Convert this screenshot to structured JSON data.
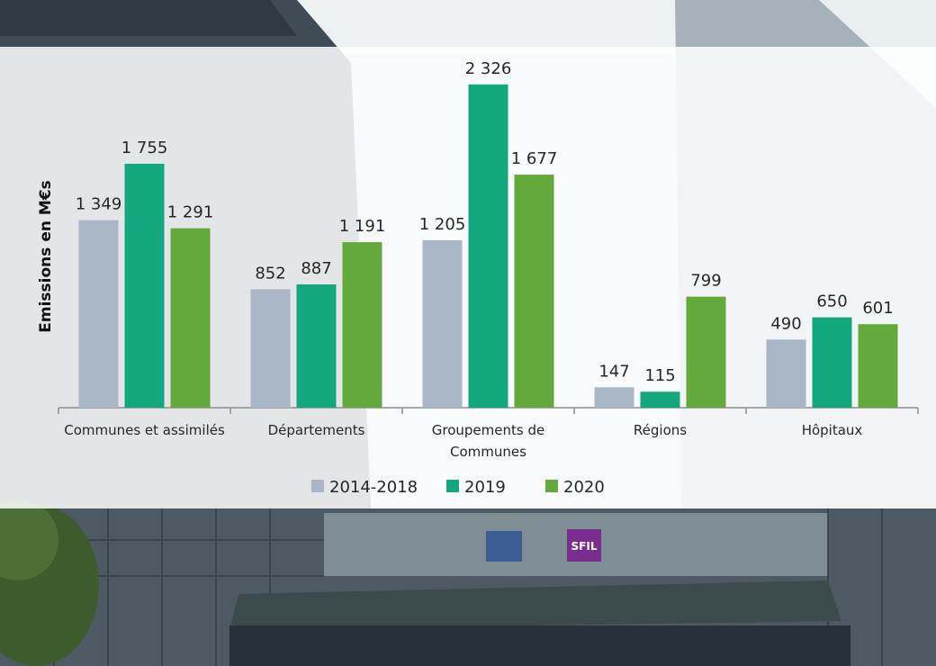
{
  "chart_data": {
    "type": "bar",
    "title": "",
    "xlabel": "",
    "ylabel": "Emissions en M€s",
    "ylim": [
      0,
      2500
    ],
    "grid": false,
    "legend_position": "bottom",
    "categories": [
      [
        "Communes et assimilés"
      ],
      [
        "Départements"
      ],
      [
        "Groupements de",
        "Communes"
      ],
      [
        "Régions"
      ],
      [
        "Hôpitaux"
      ]
    ],
    "series": [
      {
        "name": "2014-2018",
        "color": "#a9b6c6",
        "values": [
          1349,
          852,
          1205,
          147,
          490
        ],
        "labels": [
          "1 349",
          "852",
          "1 205",
          "147",
          "490"
        ]
      },
      {
        "name": "2019",
        "color": "#12a77c",
        "values": [
          1755,
          887,
          2326,
          115,
          650
        ],
        "labels": [
          "1 755",
          "887",
          "2 326",
          "115",
          "650"
        ]
      },
      {
        "name": "2020",
        "color": "#63a93c",
        "values": [
          1291,
          1191,
          1677,
          799,
          601
        ],
        "labels": [
          "1 291",
          "1 191",
          "1 677",
          "799",
          "601"
        ]
      }
    ]
  },
  "background": {
    "sign_text": "SFIL"
  }
}
